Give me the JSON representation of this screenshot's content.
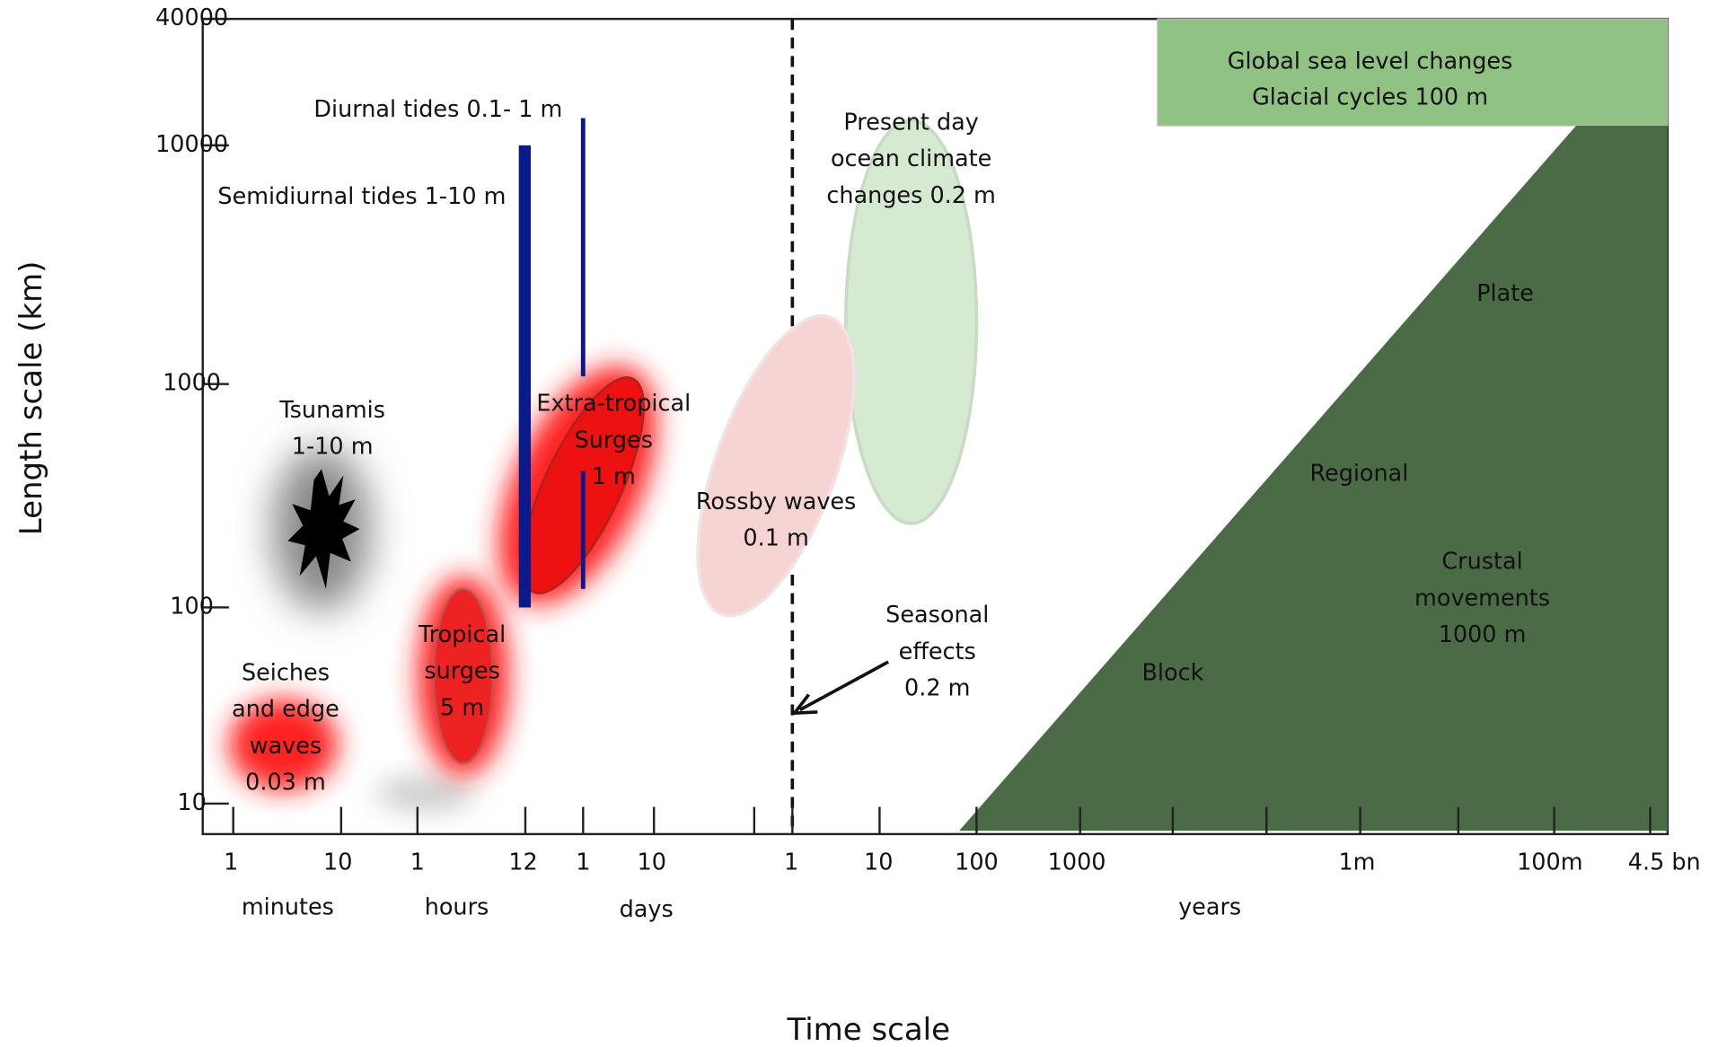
{
  "axes": {
    "x_title": "Time scale",
    "y_title": "Length scale  (km)",
    "y_ticks": [
      "40000",
      "10000",
      "1000",
      "100",
      "10"
    ],
    "x_ticks": [
      "1",
      "10",
      "1",
      "12",
      "1",
      "10",
      "1",
      "10",
      "100",
      "1000",
      "1m",
      "100m",
      "4.5 bn"
    ],
    "x_units": [
      "minutes",
      "hours",
      "days",
      "years"
    ]
  },
  "header_box": {
    "lines": [
      "Global sea level changes",
      "Glacial cycles  100 m"
    ]
  },
  "annotations": [
    {
      "lines": [
        "Diurnal tides 0.1- 1 m"
      ]
    },
    {
      "lines": [
        "Semidiurnal tides 1-10 m"
      ]
    },
    {
      "lines": [
        "Present day",
        "ocean climate",
        "changes  0.2 m"
      ]
    },
    {
      "lines": [
        "Tsunamis",
        "1-10 m"
      ]
    },
    {
      "lines": [
        "Extra-tropical",
        "Surges",
        "1 m"
      ]
    },
    {
      "lines": [
        "Rossby  waves",
        "0.1 m"
      ]
    },
    {
      "lines": [
        "Seasonal",
        "effects",
        "0.2 m"
      ]
    },
    {
      "lines": [
        "Tropical",
        "surges",
        "5 m"
      ]
    },
    {
      "lines": [
        "Seiches",
        "and edge",
        "waves",
        "0.03 m"
      ]
    },
    {
      "lines": [
        "Plate"
      ]
    },
    {
      "lines": [
        "Regional"
      ]
    },
    {
      "lines": [
        "Block"
      ]
    },
    {
      "lines": [
        "Crustal",
        "movements",
        "1000 m"
      ]
    }
  ]
}
